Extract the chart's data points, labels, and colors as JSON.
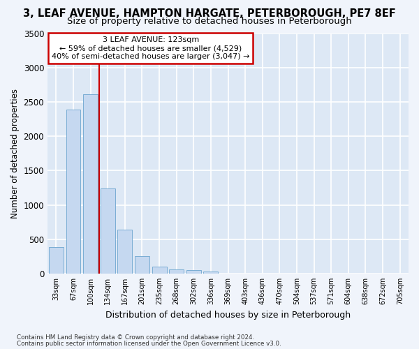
{
  "title": "3, LEAF AVENUE, HAMPTON HARGATE, PETERBOROUGH, PE7 8EF",
  "subtitle": "Size of property relative to detached houses in Peterborough",
  "xlabel": "Distribution of detached houses by size in Peterborough",
  "ylabel": "Number of detached properties",
  "categories": [
    "33sqm",
    "67sqm",
    "100sqm",
    "134sqm",
    "167sqm",
    "201sqm",
    "235sqm",
    "268sqm",
    "302sqm",
    "336sqm",
    "369sqm",
    "403sqm",
    "436sqm",
    "470sqm",
    "504sqm",
    "537sqm",
    "571sqm",
    "604sqm",
    "638sqm",
    "672sqm",
    "705sqm"
  ],
  "values": [
    390,
    2390,
    2610,
    1240,
    640,
    250,
    100,
    60,
    50,
    30,
    0,
    0,
    0,
    0,
    0,
    0,
    0,
    0,
    0,
    0,
    0
  ],
  "bar_color": "#c5d8f0",
  "bar_edge_color": "#7aadd4",
  "vline_x": 2.5,
  "vline_color": "#cc0000",
  "ylim": [
    0,
    3500
  ],
  "yticks": [
    0,
    500,
    1000,
    1500,
    2000,
    2500,
    3000,
    3500
  ],
  "annotation_line1": "3 LEAF AVENUE: 123sqm",
  "annotation_line2": "← 59% of detached houses are smaller (4,529)",
  "annotation_line3": "40% of semi-detached houses are larger (3,047) →",
  "footer1": "Contains HM Land Registry data © Crown copyright and database right 2024.",
  "footer2": "Contains public sector information licensed under the Open Government Licence v3.0.",
  "fig_bg_color": "#f0f4fb",
  "plot_bg_color": "#dde8f5",
  "grid_color": "#ffffff",
  "title_fontsize": 10.5,
  "subtitle_fontsize": 9.5
}
